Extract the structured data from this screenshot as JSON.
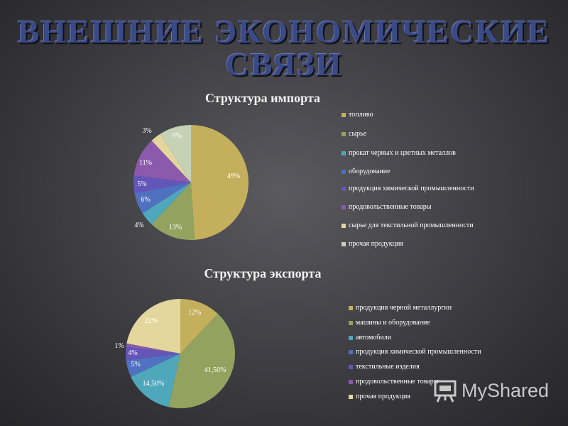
{
  "slide": {
    "title_line1": "ВНЕШНИЕ ЭКОНОМИЧЕСКИЕ",
    "title_line2": "СВЯЗИ"
  },
  "watermark": {
    "text": "MyShared"
  },
  "chart_data": [
    {
      "type": "pie",
      "title": "Структура импорта",
      "labels": [
        "топливо",
        "сырье",
        "прокат черных и цветных металлов",
        "оборудование",
        "продукция химической промышленности",
        "продовольственные товары",
        "сырье для текстильной промышленности",
        "прочая продукция"
      ],
      "values": [
        49,
        13,
        4,
        6,
        5,
        11,
        3,
        9
      ],
      "data_labels": [
        "49%",
        "13%",
        "4%",
        "6%",
        "5%",
        "11%",
        "3%",
        "9%"
      ],
      "colors": [
        "#c4b05c",
        "#93a35f",
        "#4ea7bb",
        "#5070c0",
        "#6455b8",
        "#8c5aac",
        "#e3d79d",
        "#c5d2b5"
      ],
      "legend_position": "right"
    },
    {
      "type": "pie",
      "title": "Структура экспорта",
      "labels": [
        "продукция черной металлургии",
        "машины и оборудование",
        "автомобили",
        "продукция химической промышленности",
        "текстильные изделия",
        "продовольственные товары",
        "прочая продукция"
      ],
      "values": [
        12,
        41.5,
        14.5,
        5,
        4,
        1,
        22
      ],
      "data_labels": [
        "12%",
        "41,50%",
        "14,50%",
        "5%",
        "4%",
        "1%",
        "22%"
      ],
      "colors": [
        "#c4b05c",
        "#93a35f",
        "#4ea7bb",
        "#5070c0",
        "#6455b8",
        "#8c5aac",
        "#e3d79d"
      ],
      "legend_position": "right"
    }
  ]
}
